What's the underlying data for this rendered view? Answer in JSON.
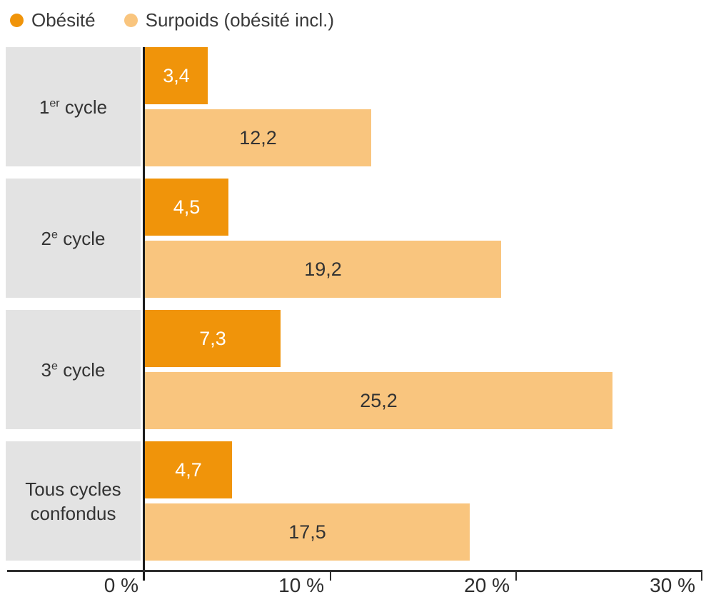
{
  "colors": {
    "obesity": "#f0940a",
    "overweight": "#f9c57e",
    "label_bg": "#e3e3e3",
    "axis": "#2e2e2e",
    "axis_strong": "#1c1c1c",
    "text": "#3a3a3a"
  },
  "chart_data": {
    "type": "bar",
    "orientation": "horizontal",
    "title": "",
    "legend_position": "top-left",
    "grid": false,
    "categories": [
      {
        "base": "1",
        "sup": "er",
        "rest": " cycle"
      },
      {
        "base": "2",
        "sup": "e",
        "rest": " cycle"
      },
      {
        "base": "3",
        "sup": "e",
        "rest": " cycle"
      },
      {
        "base": "Tous cycles confondus",
        "sup": "",
        "rest": ""
      }
    ],
    "series": [
      {
        "name": "Obésité",
        "color": "#f0940a",
        "values": [
          3.4,
          4.5,
          7.3,
          4.7
        ],
        "value_labels": [
          "3,4",
          "4,5",
          "7,3",
          "4,7"
        ]
      },
      {
        "name": "Surpoids (obésité incl.)",
        "color": "#f9c57e",
        "values": [
          12.2,
          19.2,
          25.2,
          17.5
        ],
        "value_labels": [
          "12,2",
          "19,2",
          "25,2",
          "17,5"
        ]
      }
    ],
    "x_axis": {
      "min": 0,
      "max": 30,
      "tick_values": [
        0,
        10,
        20,
        30
      ],
      "tick_labels": [
        "0 %",
        "10 %",
        "20 %",
        "30 %"
      ]
    }
  }
}
